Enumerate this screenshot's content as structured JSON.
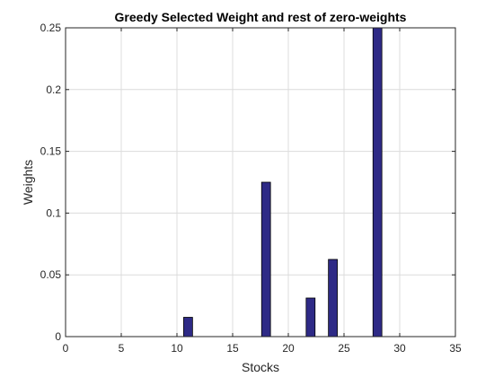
{
  "chart_data": {
    "type": "bar",
    "title": "Greedy Selected Weight and rest of zero-weights",
    "xlabel": "Stocks",
    "ylabel": "Weights",
    "xlim": [
      0,
      35
    ],
    "ylim": [
      0,
      0.25
    ],
    "xticks": [
      0,
      5,
      10,
      15,
      20,
      25,
      30,
      35
    ],
    "xtick_labels": [
      "0",
      "5",
      "10",
      "15",
      "20",
      "25",
      "30",
      "35"
    ],
    "yticks": [
      0,
      0.05,
      0.1,
      0.15,
      0.2,
      0.25
    ],
    "ytick_labels": [
      "0",
      "0.05",
      "0.1",
      "0.15",
      "0.2",
      "0.25"
    ],
    "grid": true,
    "bar_color": "#2e2a86",
    "bar_edge_color": "#000000",
    "x": [
      11,
      18,
      22,
      24,
      28
    ],
    "values": [
      0.015625,
      0.125,
      0.03125,
      0.0625,
      0.25
    ]
  }
}
